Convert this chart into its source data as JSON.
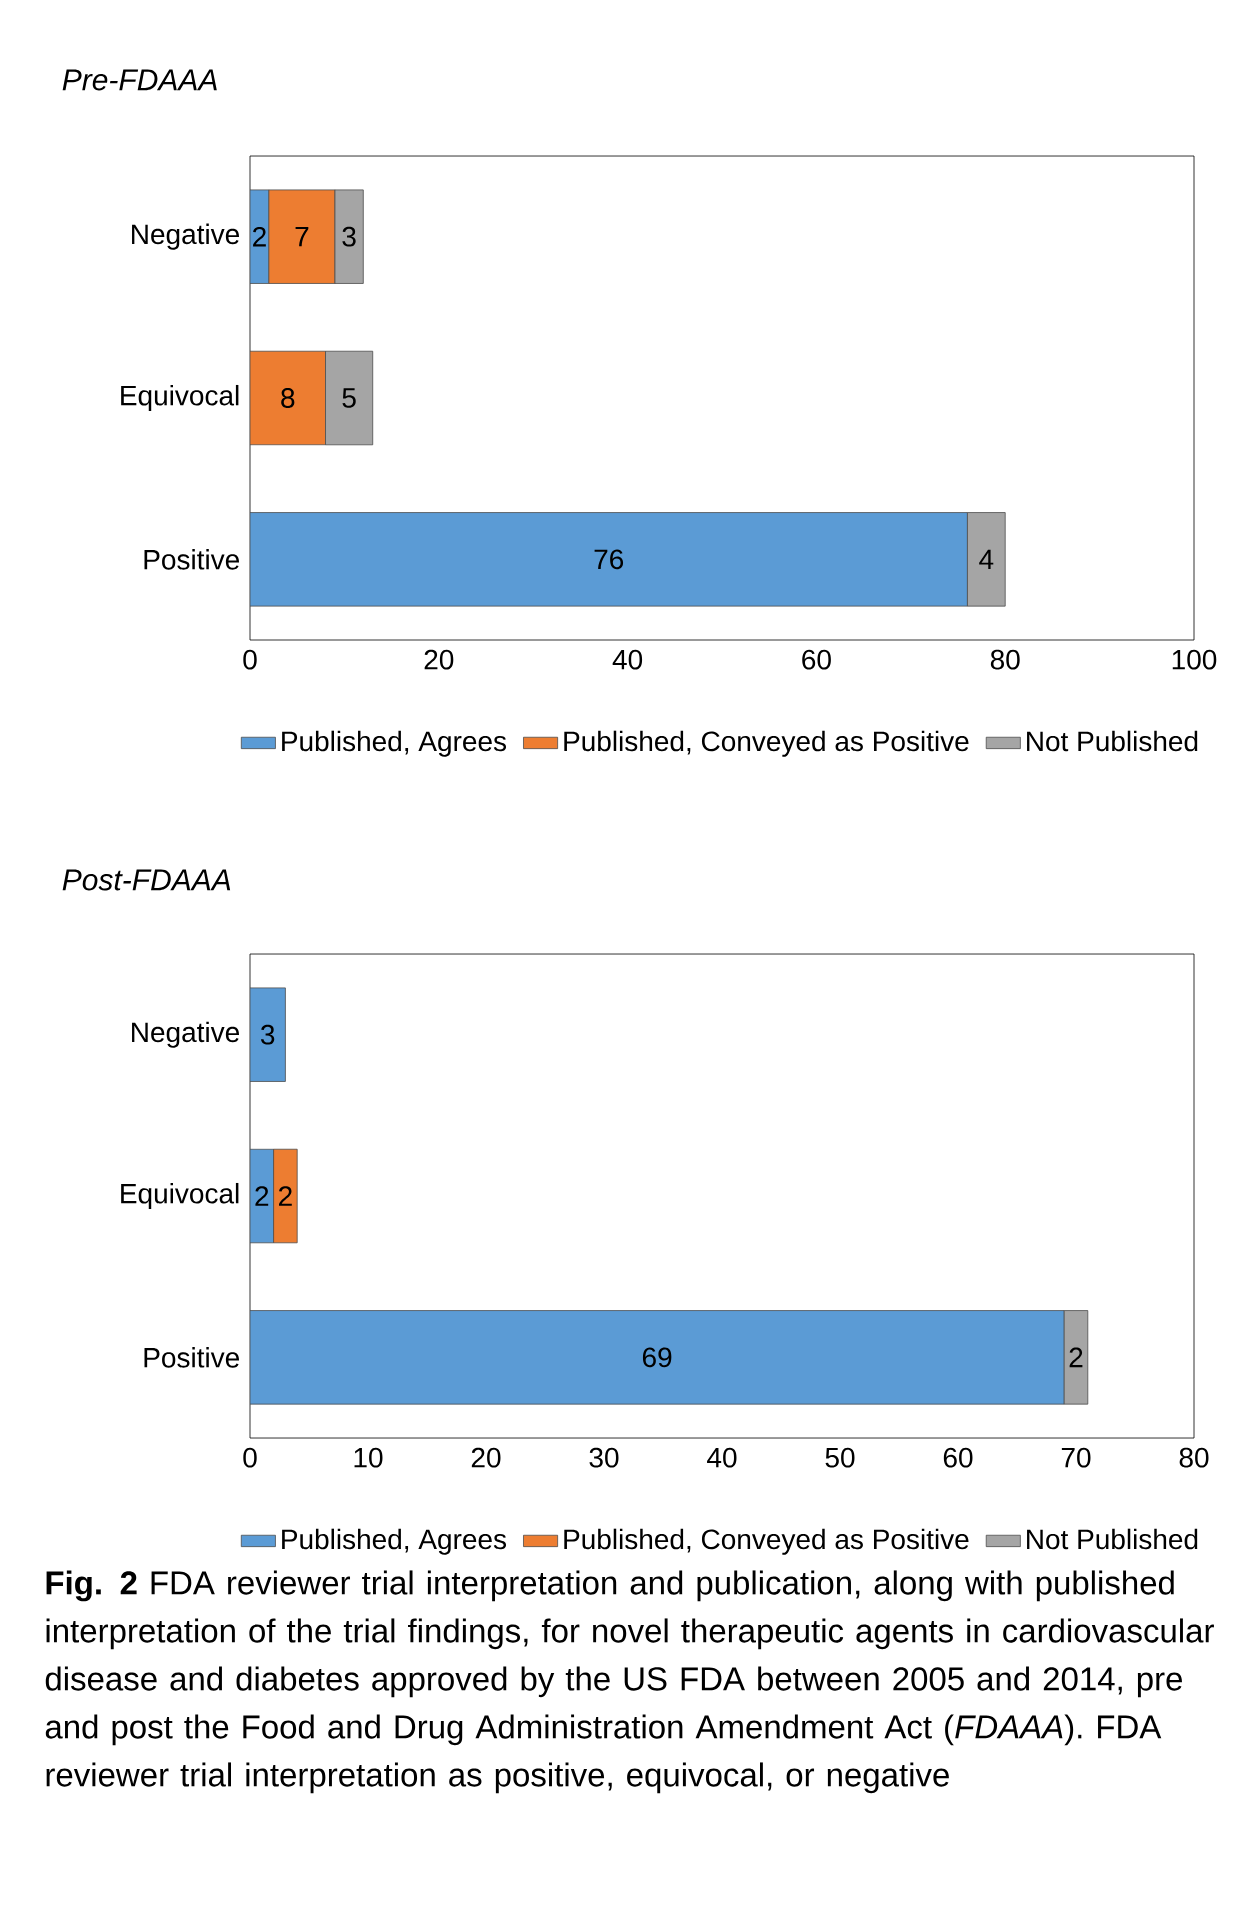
{
  "chart_data": [
    {
      "type": "bar",
      "orientation": "horizontal",
      "stacked": true,
      "title": "Pre-FDAAA",
      "categories": [
        "Negative",
        "Equivocal",
        "Positive"
      ],
      "series": [
        {
          "name": "Published, Agrees",
          "color": "#5b9bd5",
          "values": [
            2,
            null,
            76
          ]
        },
        {
          "name": "Published, Conveyed as Positive",
          "color": "#ed7d31",
          "values": [
            7,
            8,
            null
          ]
        },
        {
          "name": "Not Published",
          "color": "#a5a5a5",
          "values": [
            3,
            5,
            4
          ]
        }
      ],
      "xlim": [
        0,
        100
      ],
      "xticks": [
        0,
        20,
        40,
        60,
        80,
        100
      ],
      "data_labels": true,
      "legend": "bottom"
    },
    {
      "type": "bar",
      "orientation": "horizontal",
      "stacked": true,
      "title": "Post-FDAAA",
      "categories": [
        "Negative",
        "Equivocal",
        "Positive"
      ],
      "series": [
        {
          "name": "Published, Agrees",
          "color": "#5b9bd5",
          "values": [
            3,
            2,
            69
          ]
        },
        {
          "name": "Published, Conveyed as Positive",
          "color": "#ed7d31",
          "values": [
            null,
            2,
            null
          ]
        },
        {
          "name": "Not Published",
          "color": "#a5a5a5",
          "values": [
            null,
            null,
            2
          ]
        }
      ],
      "xlim": [
        0,
        80
      ],
      "xticks": [
        0,
        10,
        20,
        30,
        40,
        50,
        60,
        70,
        80
      ],
      "data_labels": true,
      "legend": "bottom",
      "annotations": [
        "**Fig. 2** FDA reviewer trial interpretation and publication, along with published interpretation of the trial findings, for novel therapeutic agents in cardiovascular disease and diabetes approved by the US FDA between 2005 and 2014, pre and post the Food and Drug Administration Amendment Act (*FDAAA*). FDA reviewer trial interpretation as positive, equivocal, or negative"
      ]
    }
  ]
}
